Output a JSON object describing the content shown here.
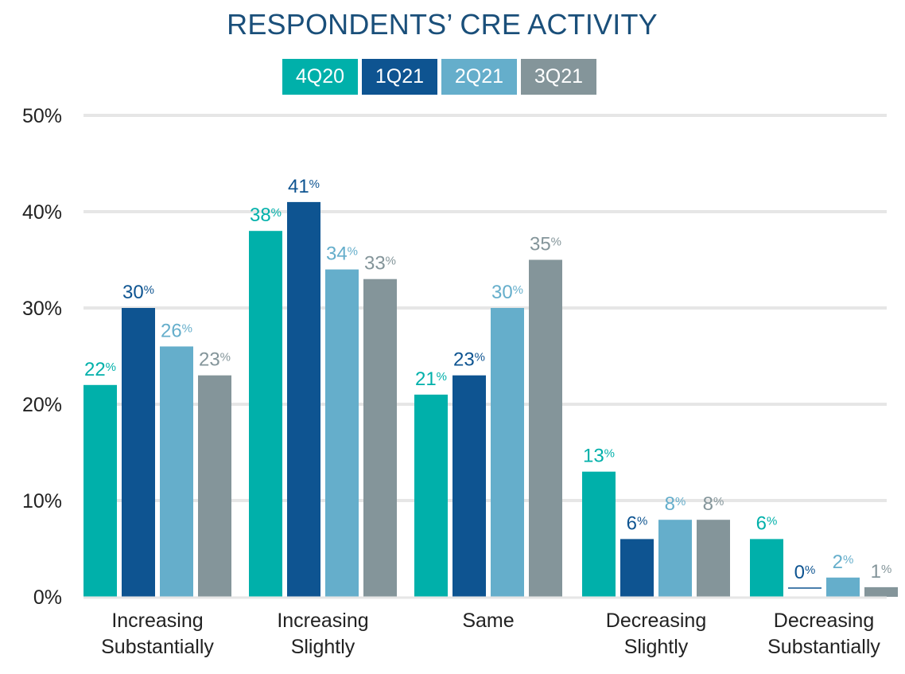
{
  "chart_data": {
    "type": "bar",
    "title": "RESPONDENTS’ CRE ACTIVITY",
    "categories": [
      [
        "Increasing",
        "Substantially"
      ],
      [
        "Increasing",
        "Slightly"
      ],
      [
        "Same"
      ],
      [
        "Decreasing",
        "Slightly"
      ],
      [
        "Decreasing",
        "Substantially"
      ]
    ],
    "series": [
      {
        "name": "4Q20",
        "color": "#00b0aa",
        "values": [
          22,
          38,
          21,
          13,
          6
        ]
      },
      {
        "name": "1Q21",
        "color": "#0e5491",
        "values": [
          30,
          41,
          23,
          6,
          0
        ]
      },
      {
        "name": "2Q21",
        "color": "#65aecb",
        "values": [
          26,
          34,
          30,
          8,
          2
        ]
      },
      {
        "name": "3Q21",
        "color": "#84959a",
        "values": [
          23,
          33,
          35,
          8,
          1
        ]
      }
    ],
    "ylim": [
      0,
      50
    ],
    "yticks": [
      0,
      10,
      20,
      30,
      40,
      50
    ],
    "ytick_labels": [
      "0%",
      "10%",
      "20%",
      "30%",
      "40%",
      "50%"
    ],
    "value_suffix": "%",
    "grid": true,
    "legend_position": "top-center",
    "gridline_color": "#e6e6e6"
  }
}
